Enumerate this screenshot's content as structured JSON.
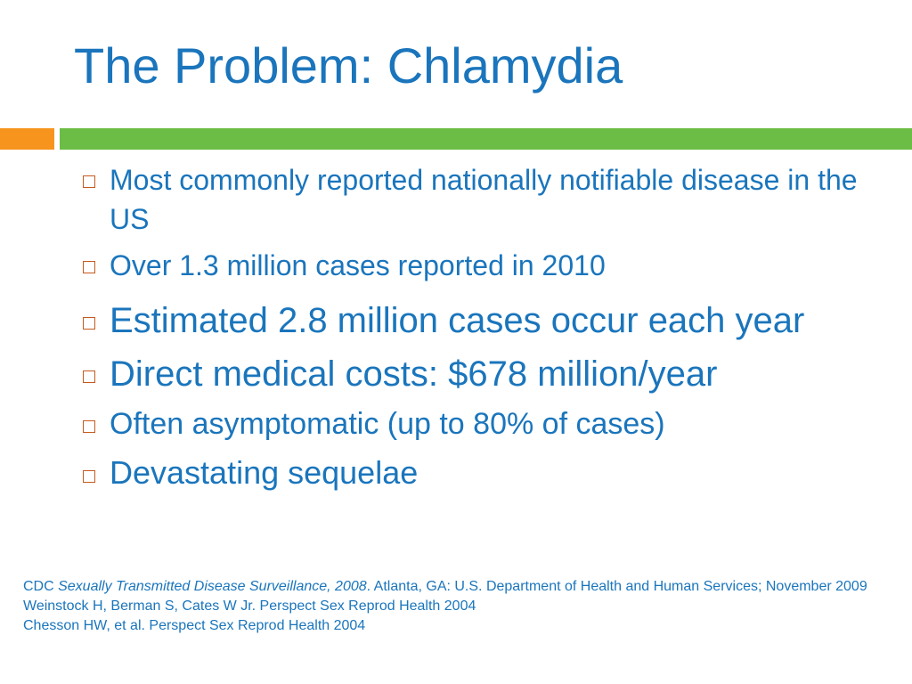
{
  "slide": {
    "title": "The Problem: Chlamydia",
    "accent_colors": {
      "orange": "#f7941d",
      "green": "#6cbd45",
      "text": "#1a75bc",
      "bullet_box": "#c65a1e"
    },
    "bullet_icon": "hollow-square-bullet",
    "bullets": [
      "Most commonly reported nationally notifiable disease in the US",
      "Over 1.3 million cases reported in 2010",
      "Estimated 2.8 million cases occur each year",
      "Direct medical costs: $678 million/year",
      "Often asymptomatic (up to 80% of cases)",
      "Devastating sequelae"
    ],
    "references": {
      "ref1_prefix": "CDC ",
      "ref1_italic": "Sexually Transmitted Disease Surveillance, 2008",
      "ref1_suffix": ". Atlanta, GA: U.S. Department of Health and Human Services; November 2009",
      "ref2": "Weinstock H, Berman S, Cates W Jr. Perspect  Sex Reprod Health 2004",
      "ref3": "Chesson HW, et al. Perspect Sex Reprod Health 2004"
    }
  }
}
